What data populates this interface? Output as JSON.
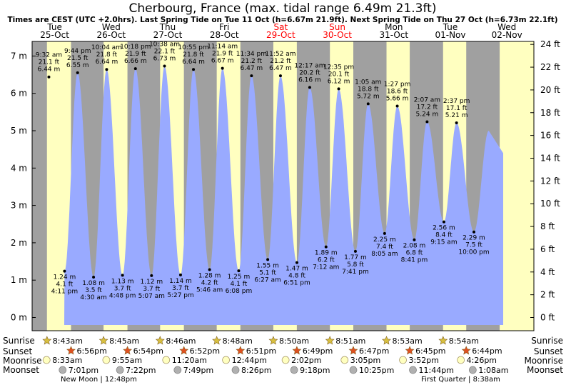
{
  "chart_data": {
    "type": "area",
    "title": "Cherbourg, France (max. tidal range 6.49m 21.3ft)",
    "subtitle": "Times are CEST (UTC +2.0hrs). Last Spring Tide on Tue 11 Oct (h=6.67m 21.9ft). Next Spring Tide on Thu 27 Oct (h=6.73m 22.1ft)",
    "ylim_m": [
      -0.3,
      7.4
    ],
    "ylim_ft": [
      -1,
      24.3
    ],
    "left_ticks": [
      "0 m",
      "1 m",
      "2 m",
      "3 m",
      "4 m",
      "5 m",
      "6 m",
      "7 m"
    ],
    "right_ticks": [
      "0 ft",
      "2 ft",
      "4 ft",
      "6 ft",
      "8 ft",
      "10 ft",
      "12 ft",
      "14 ft",
      "16 ft",
      "18 ft",
      "20 ft",
      "22 ft",
      "24 ft"
    ],
    "days": [
      {
        "dow": "Tue",
        "date": "25-Oct",
        "weekend": false,
        "sunrise": "8:43am",
        "sunset": "6:56pm",
        "moonrise": "8:33am",
        "moonset": "7:01pm"
      },
      {
        "dow": "Wed",
        "date": "26-Oct",
        "weekend": false,
        "sunrise": "8:45am",
        "sunset": "6:54pm",
        "moonrise": "9:55am",
        "moonset": "7:22pm"
      },
      {
        "dow": "Thu",
        "date": "27-Oct",
        "weekend": false,
        "sunrise": "8:46am",
        "sunset": "6:52pm",
        "moonrise": "11:20am",
        "moonset": "7:49pm"
      },
      {
        "dow": "Fri",
        "date": "28-Oct",
        "weekend": false,
        "sunrise": "8:48am",
        "sunset": "6:51pm",
        "moonrise": "12:44pm",
        "moonset": "8:26pm"
      },
      {
        "dow": "Sat",
        "date": "29-Oct",
        "weekend": true,
        "sunrise": "8:50am",
        "sunset": "6:49pm",
        "moonrise": "2:02pm",
        "moonset": "9:18pm"
      },
      {
        "dow": "Sun",
        "date": "30-Oct",
        "weekend": true,
        "sunrise": "8:51am",
        "sunset": "6:47pm",
        "moonrise": "3:05pm",
        "moonset": "10:25pm"
      },
      {
        "dow": "Mon",
        "date": "31-Oct",
        "weekend": false,
        "sunrise": "8:53am",
        "sunset": "6:45pm",
        "moonrise": "3:52pm",
        "moonset": "11:44pm"
      },
      {
        "dow": "Tue",
        "date": "01-Nov",
        "weekend": false,
        "sunrise": "8:54am",
        "sunset": "6:44pm",
        "moonrise": "4:26pm",
        "moonset": "1:08am"
      },
      {
        "dow": "Wed",
        "date": "02-Nov",
        "weekend": false
      }
    ],
    "tides": [
      {
        "type": "high",
        "time": "9:32 am",
        "ft": "21.1 ft",
        "m": 6.44,
        "label_m": "6.44 m"
      },
      {
        "type": "low",
        "time": "4:11 pm",
        "ft": "4.1 ft",
        "m": 1.24,
        "label_m": "1.24 m"
      },
      {
        "type": "high",
        "time": "9:44 pm",
        "ft": "21.5 ft",
        "m": 6.55,
        "label_m": "6.55 m"
      },
      {
        "type": "low",
        "time": "4:30 am",
        "ft": "3.5 ft",
        "m": 1.08,
        "label_m": "1.08 m"
      },
      {
        "type": "high",
        "time": "10:04 am",
        "ft": "21.8 ft",
        "m": 6.64,
        "label_m": "6.64 m"
      },
      {
        "type": "low",
        "time": "4:48 pm",
        "ft": "3.7 ft",
        "m": 1.13,
        "label_m": "1.13 m"
      },
      {
        "type": "high",
        "time": "10:18 pm",
        "ft": "21.9 ft",
        "m": 6.66,
        "label_m": "6.66 m"
      },
      {
        "type": "low",
        "time": "5:07 am",
        "ft": "3.7 ft",
        "m": 1.12,
        "label_m": "1.12 m"
      },
      {
        "type": "high",
        "time": "10:38 am",
        "ft": "22.1 ft",
        "m": 6.73,
        "label_m": "6.73 m"
      },
      {
        "type": "low",
        "time": "5:27 pm",
        "ft": "3.7 ft",
        "m": 1.14,
        "label_m": "1.14 m"
      },
      {
        "type": "high",
        "time": "10:55 pm",
        "ft": "21.8 ft",
        "m": 6.64,
        "label_m": "6.64 m"
      },
      {
        "type": "low",
        "time": "5:46 am",
        "ft": "4.2 ft",
        "m": 1.28,
        "label_m": "1.28 m"
      },
      {
        "type": "high",
        "time": "11:14 am",
        "ft": "21.9 ft",
        "m": 6.67,
        "label_m": "6.67 m"
      },
      {
        "type": "low",
        "time": "6:08 pm",
        "ft": "4.1 ft",
        "m": 1.25,
        "label_m": "1.25 m"
      },
      {
        "type": "high",
        "time": "11:34 pm",
        "ft": "21.2 ft",
        "m": 6.47,
        "label_m": "6.47 m"
      },
      {
        "type": "low",
        "time": "6:27 am",
        "ft": "5.1 ft",
        "m": 1.55,
        "label_m": "1.55 m"
      },
      {
        "type": "high",
        "time": "11:52 am",
        "ft": "21.2 ft",
        "m": 6.47,
        "label_m": "6.47 m"
      },
      {
        "type": "low",
        "time": "6:51 pm",
        "ft": "4.8 ft",
        "m": 1.47,
        "label_m": "1.47 m"
      },
      {
        "type": "high",
        "time": "12:17 am",
        "ft": "20.2 ft",
        "m": 6.16,
        "label_m": "6.16 m"
      },
      {
        "type": "low",
        "time": "7:12 am",
        "ft": "6.2 ft",
        "m": 1.89,
        "label_m": "1.89 m"
      },
      {
        "type": "high",
        "time": "12:35 pm",
        "ft": "20.1 ft",
        "m": 6.12,
        "label_m": "6.12 m"
      },
      {
        "type": "low",
        "time": "7:41 pm",
        "ft": "5.8 ft",
        "m": 1.77,
        "label_m": "1.77 m"
      },
      {
        "type": "high",
        "time": "1:05 am",
        "ft": "18.8 ft",
        "m": 5.72,
        "label_m": "5.72 m"
      },
      {
        "type": "low",
        "time": "8:05 am",
        "ft": "7.4 ft",
        "m": 2.25,
        "label_m": "2.25 m"
      },
      {
        "type": "high",
        "time": "1:27 pm",
        "ft": "18.6 ft",
        "m": 5.66,
        "label_m": "5.66 m"
      },
      {
        "type": "low",
        "time": "8:41 pm",
        "ft": "6.8 ft",
        "m": 2.08,
        "label_m": "2.08 m"
      },
      {
        "type": "high",
        "time": "2:07 am",
        "ft": "17.2 ft",
        "m": 5.24,
        "label_m": "5.24 m"
      },
      {
        "type": "low",
        "time": "9:15 am",
        "ft": "8.4 ft",
        "m": 2.56,
        "label_m": "2.56 m"
      },
      {
        "type": "high",
        "time": "2:37 pm",
        "ft": "17.1 ft",
        "m": 5.21,
        "label_m": "5.21 m"
      },
      {
        "type": "low",
        "time": "10:00 pm",
        "ft": "7.5 ft",
        "m": 2.29,
        "label_m": "2.29 m"
      }
    ],
    "row_labels": {
      "sunrise": "Sunrise",
      "sunset": "Sunset",
      "moonrise": "Moonrise",
      "moonset": "Moonset"
    },
    "moon_phases": [
      {
        "text": "New Moon | 12:48pm"
      },
      {
        "text": "First Quarter | 8:38am"
      }
    ],
    "colors": {
      "night": "#a0a0a0",
      "day": "#ffffc0",
      "water": "#99aaff",
      "weekend_label": "#ff0000",
      "weekday_label": "#000000",
      "sun_icon": "#d8c040",
      "sunset_icon": "#e05020",
      "moonrise_icon": "#ffffc0",
      "moonset_icon": "#b0b0b0"
    }
  }
}
